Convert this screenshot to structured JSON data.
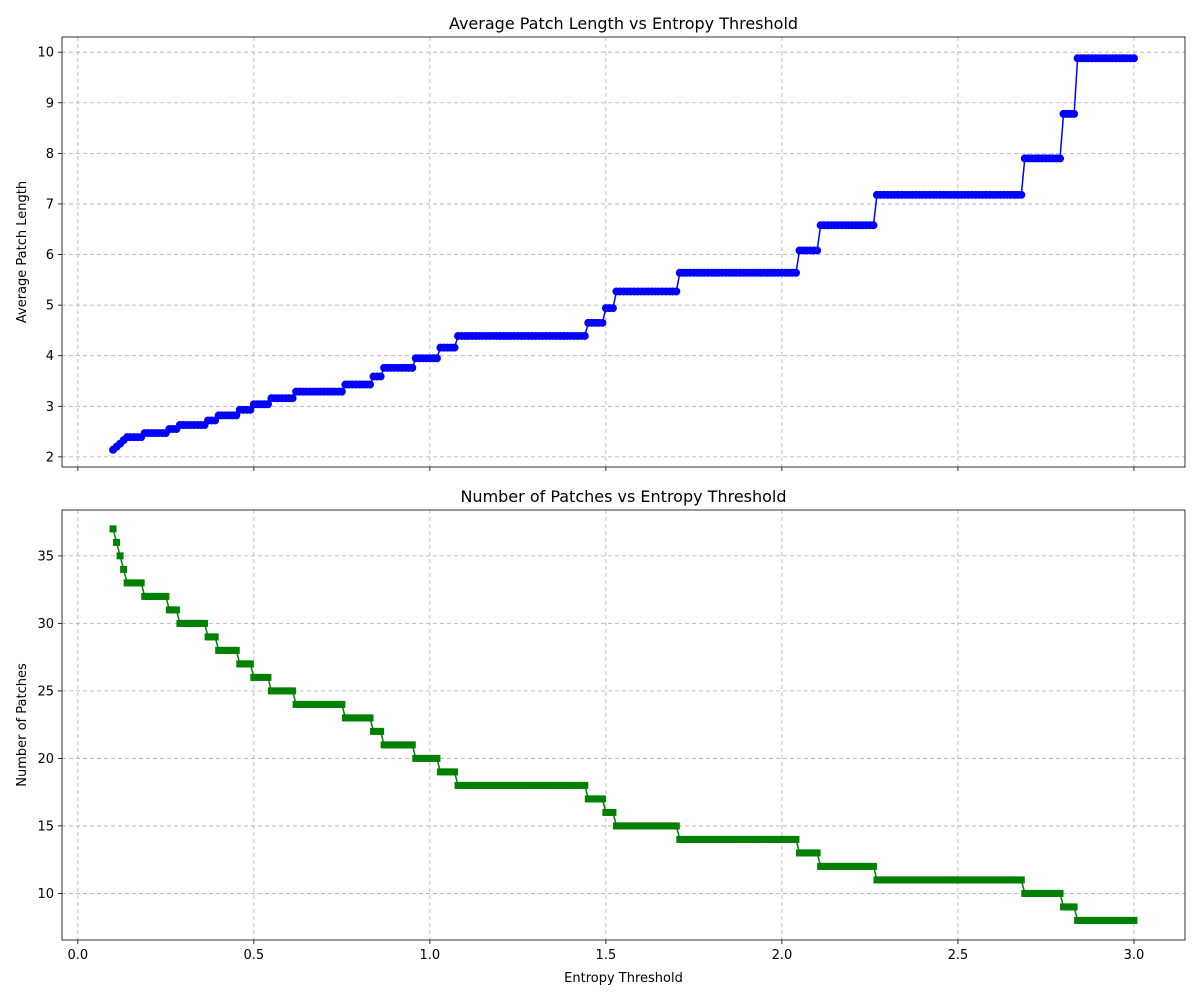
{
  "chart_data": [
    {
      "type": "line",
      "title": "Average Patch Length vs Entropy Threshold",
      "xlabel": "",
      "ylabel": "Average Patch Length",
      "xlim": [
        -0.045,
        3.145
      ],
      "ylim": [
        1.8,
        10.3
      ],
      "xticks": [
        0.0,
        0.5,
        1.0,
        1.5,
        2.0,
        2.5,
        3.0
      ],
      "xtick_labels": [
        "",
        "",
        "",
        "",
        "",
        "",
        ""
      ],
      "yticks": [
        2,
        3,
        4,
        5,
        6,
        7,
        8,
        9,
        10
      ],
      "ytick_labels": [
        "2",
        "3",
        "4",
        "5",
        "6",
        "7",
        "8",
        "9",
        "10"
      ],
      "grid": true,
      "marker": "circle",
      "color": "#0000ff",
      "series": [
        {
          "steps": [
            {
              "x0": 0.1,
              "x1": 0.1,
              "y": 2.14
            },
            {
              "x0": 0.11,
              "x1": 0.11,
              "y": 2.2
            },
            {
              "x0": 0.12,
              "x1": 0.12,
              "y": 2.26
            },
            {
              "x0": 0.13,
              "x1": 0.13,
              "y": 2.33
            },
            {
              "x0": 0.14,
              "x1": 0.18,
              "y": 2.39
            },
            {
              "x0": 0.19,
              "x1": 0.25,
              "y": 2.47
            },
            {
              "x0": 0.26,
              "x1": 0.28,
              "y": 2.55
            },
            {
              "x0": 0.29,
              "x1": 0.36,
              "y": 2.63
            },
            {
              "x0": 0.37,
              "x1": 0.39,
              "y": 2.72
            },
            {
              "x0": 0.4,
              "x1": 0.45,
              "y": 2.82
            },
            {
              "x0": 0.46,
              "x1": 0.49,
              "y": 2.93
            },
            {
              "x0": 0.5,
              "x1": 0.54,
              "y": 3.04
            },
            {
              "x0": 0.55,
              "x1": 0.61,
              "y": 3.16
            },
            {
              "x0": 0.62,
              "x1": 0.75,
              "y": 3.29
            },
            {
              "x0": 0.76,
              "x1": 0.83,
              "y": 3.43
            },
            {
              "x0": 0.84,
              "x1": 0.86,
              "y": 3.59
            },
            {
              "x0": 0.87,
              "x1": 0.95,
              "y": 3.76
            },
            {
              "x0": 0.96,
              "x1": 1.02,
              "y": 3.95
            },
            {
              "x0": 1.03,
              "x1": 1.07,
              "y": 4.16
            },
            {
              "x0": 1.08,
              "x1": 1.44,
              "y": 4.39
            },
            {
              "x0": 1.45,
              "x1": 1.49,
              "y": 4.65
            },
            {
              "x0": 1.5,
              "x1": 1.52,
              "y": 4.94
            },
            {
              "x0": 1.53,
              "x1": 1.7,
              "y": 5.27
            },
            {
              "x0": 1.71,
              "x1": 2.04,
              "y": 5.64
            },
            {
              "x0": 2.05,
              "x1": 2.1,
              "y": 6.08
            },
            {
              "x0": 2.11,
              "x1": 2.26,
              "y": 6.58
            },
            {
              "x0": 2.27,
              "x1": 2.68,
              "y": 7.18
            },
            {
              "x0": 2.69,
              "x1": 2.79,
              "y": 7.9
            },
            {
              "x0": 2.8,
              "x1": 2.83,
              "y": 8.78
            },
            {
              "x0": 2.84,
              "x1": 3.0,
              "y": 9.88
            }
          ]
        }
      ]
    },
    {
      "type": "line",
      "title": "Number of Patches vs Entropy Threshold",
      "xlabel": "Entropy Threshold",
      "ylabel": "Number of Patches",
      "xlim": [
        -0.045,
        3.145
      ],
      "ylim": [
        6.55,
        38.4
      ],
      "xticks": [
        0.0,
        0.5,
        1.0,
        1.5,
        2.0,
        2.5,
        3.0
      ],
      "xtick_labels": [
        "0.0",
        "0.5",
        "1.0",
        "1.5",
        "2.0",
        "2.5",
        "3.0"
      ],
      "yticks": [
        10,
        15,
        20,
        25,
        30,
        35
      ],
      "ytick_labels": [
        "10",
        "15",
        "20",
        "25",
        "30",
        "35"
      ],
      "grid": true,
      "marker": "square",
      "color": "#008000",
      "series": [
        {
          "steps": [
            {
              "x0": 0.1,
              "x1": 0.1,
              "y": 37
            },
            {
              "x0": 0.11,
              "x1": 0.11,
              "y": 36
            },
            {
              "x0": 0.12,
              "x1": 0.12,
              "y": 35
            },
            {
              "x0": 0.13,
              "x1": 0.13,
              "y": 34
            },
            {
              "x0": 0.14,
              "x1": 0.18,
              "y": 33
            },
            {
              "x0": 0.19,
              "x1": 0.25,
              "y": 32
            },
            {
              "x0": 0.26,
              "x1": 0.28,
              "y": 31
            },
            {
              "x0": 0.29,
              "x1": 0.36,
              "y": 30
            },
            {
              "x0": 0.37,
              "x1": 0.39,
              "y": 29
            },
            {
              "x0": 0.4,
              "x1": 0.45,
              "y": 28
            },
            {
              "x0": 0.46,
              "x1": 0.49,
              "y": 27
            },
            {
              "x0": 0.5,
              "x1": 0.54,
              "y": 26
            },
            {
              "x0": 0.55,
              "x1": 0.61,
              "y": 25
            },
            {
              "x0": 0.62,
              "x1": 0.75,
              "y": 24
            },
            {
              "x0": 0.76,
              "x1": 0.83,
              "y": 23
            },
            {
              "x0": 0.84,
              "x1": 0.86,
              "y": 22
            },
            {
              "x0": 0.87,
              "x1": 0.95,
              "y": 21
            },
            {
              "x0": 0.96,
              "x1": 1.02,
              "y": 20
            },
            {
              "x0": 1.03,
              "x1": 1.07,
              "y": 19
            },
            {
              "x0": 1.08,
              "x1": 1.44,
              "y": 18
            },
            {
              "x0": 1.45,
              "x1": 1.49,
              "y": 17
            },
            {
              "x0": 1.5,
              "x1": 1.52,
              "y": 16
            },
            {
              "x0": 1.53,
              "x1": 1.7,
              "y": 15
            },
            {
              "x0": 1.71,
              "x1": 2.04,
              "y": 14
            },
            {
              "x0": 2.05,
              "x1": 2.1,
              "y": 13
            },
            {
              "x0": 2.11,
              "x1": 2.26,
              "y": 12
            },
            {
              "x0": 2.27,
              "x1": 2.68,
              "y": 11
            },
            {
              "x0": 2.69,
              "x1": 2.79,
              "y": 10
            },
            {
              "x0": 2.8,
              "x1": 2.83,
              "y": 9
            },
            {
              "x0": 2.84,
              "x1": 3.0,
              "y": 8
            }
          ]
        }
      ]
    }
  ]
}
